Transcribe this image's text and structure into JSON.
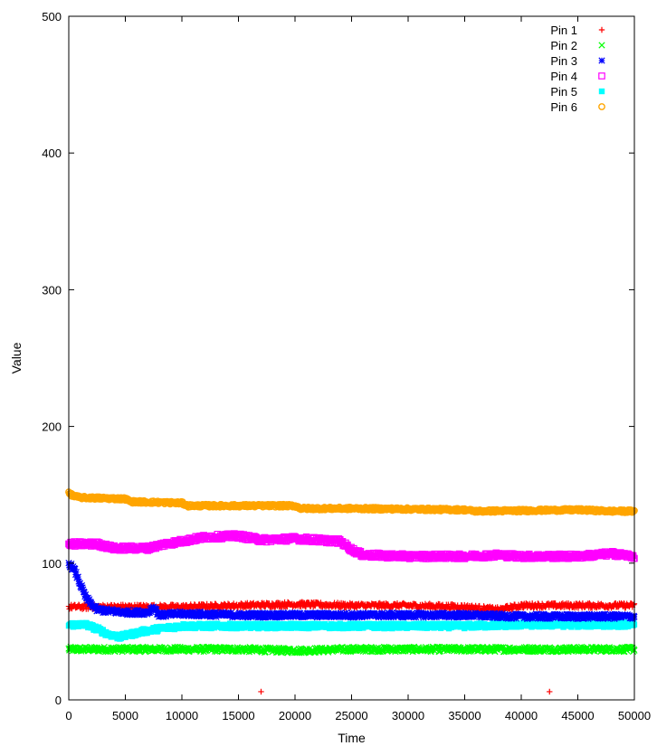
{
  "chart_data": {
    "type": "scatter",
    "xlabel": "Time",
    "ylabel": "Value",
    "xlim": [
      0,
      50000
    ],
    "ylim": [
      0,
      500
    ],
    "xticks": [
      0,
      5000,
      10000,
      15000,
      20000,
      25000,
      30000,
      35000,
      40000,
      45000,
      50000
    ],
    "yticks": [
      0,
      100,
      200,
      300,
      400,
      500
    ],
    "xtick_labels": [
      "0",
      "5000",
      "10000",
      "15000",
      "20000",
      "25000",
      "30000",
      "35000",
      "40000",
      "45000",
      "50000"
    ],
    "ytick_labels": [
      "0",
      "100",
      "200",
      "300",
      "400",
      "500"
    ],
    "grid": false,
    "legend_position": "top-right",
    "series": [
      {
        "name": "Pin 1",
        "color": "#ff0000",
        "marker": "plus",
        "x": [
          0,
          2000,
          5000,
          8000,
          10000,
          15000,
          20000,
          25000,
          30000,
          35000,
          38000,
          40000,
          45000,
          50000
        ],
        "y": [
          68,
          68,
          68,
          68,
          68,
          69,
          70,
          69,
          69,
          68,
          66,
          69,
          69,
          69
        ],
        "outliers": [
          [
            17000,
            6
          ],
          [
            42500,
            6
          ]
        ]
      },
      {
        "name": "Pin 2",
        "color": "#00ff00",
        "marker": "cross",
        "x": [
          0,
          5000,
          10000,
          15000,
          20000,
          25000,
          30000,
          35000,
          40000,
          45000,
          50000
        ],
        "y": [
          37,
          37,
          37,
          37,
          36,
          37,
          37,
          37,
          37,
          37,
          37
        ],
        "outliers": []
      },
      {
        "name": "Pin 3",
        "color": "#0000ff",
        "marker": "star",
        "x": [
          0,
          500,
          1000,
          1500,
          2000,
          2500,
          3500,
          5000,
          7000,
          7500,
          8000,
          10000,
          15000,
          20000,
          25000,
          30000,
          35000,
          40000,
          45000,
          50000
        ],
        "y": [
          100,
          95,
          85,
          75,
          70,
          66,
          65,
          64,
          64,
          68,
          62,
          63,
          62,
          62,
          62,
          62,
          62,
          61,
          61,
          61
        ],
        "outliers": []
      },
      {
        "name": "Pin 4",
        "color": "#ff00ff",
        "marker": "square",
        "x": [
          0,
          2500,
          4000,
          7000,
          8500,
          10000,
          12000,
          15000,
          17000,
          20000,
          24000,
          25000,
          26000,
          30000,
          35000,
          38000,
          40000,
          45000,
          48000,
          50000
        ],
        "y": [
          114,
          114,
          111,
          111,
          114,
          116,
          119,
          120,
          117,
          118,
          116,
          110,
          106,
          105,
          105,
          106,
          105,
          105,
          107,
          105
        ],
        "outliers": []
      },
      {
        "name": "Pin 5",
        "color": "#00ffff",
        "marker": "filled-square",
        "x": [
          0,
          1500,
          2500,
          3500,
          4500,
          5000,
          6500,
          8000,
          10000,
          15000,
          20000,
          25000,
          30000,
          35000,
          40000,
          45000,
          50000
        ],
        "y": [
          55,
          55,
          52,
          48,
          46,
          47,
          50,
          52,
          54,
          54,
          54,
          54,
          54,
          54,
          55,
          55,
          55
        ],
        "outliers": []
      },
      {
        "name": "Pin 6",
        "color": "#ffa500",
        "marker": "circle",
        "x": [
          0,
          500,
          1000,
          5000,
          5500,
          10000,
          10500,
          20000,
          20500,
          25000,
          35000,
          36000,
          45000,
          48000,
          50000
        ],
        "y": [
          151,
          149,
          148,
          147,
          145,
          144,
          142,
          142,
          140,
          140,
          139,
          138,
          139,
          138,
          138
        ],
        "outliers": []
      }
    ]
  }
}
